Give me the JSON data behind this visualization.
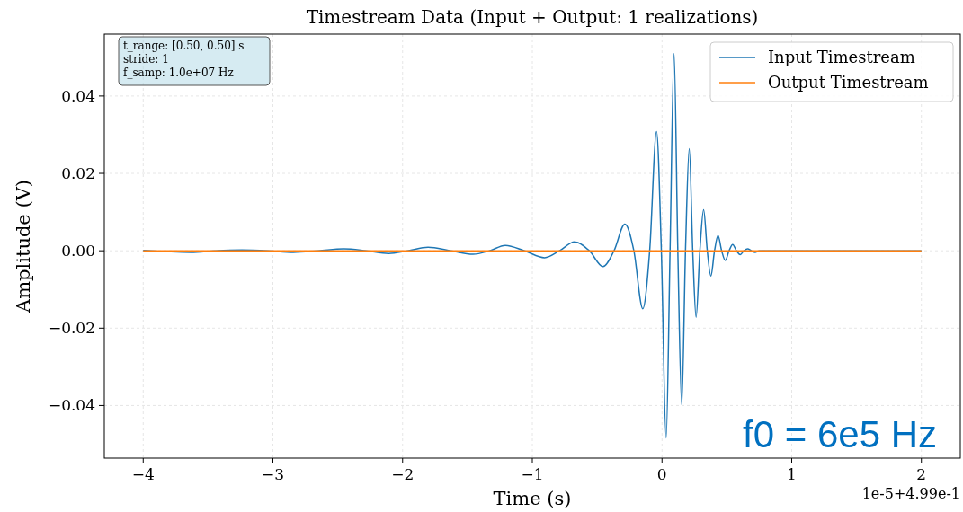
{
  "chart_data": {
    "type": "line",
    "title": "Timestream Data (Input + Output: 1 realizations)",
    "xlabel": "Time (s)",
    "ylabel": "Amplitude (V)",
    "annotations": [
      "t_range: [0.50, 0.50] s\nstride: 1\nf_samp: 1.0e+07 Hz",
      "1e-5+4.99e-1",
      "f0 = 6e5 Hz"
    ],
    "xlim": [
      -4.3,
      2.3
    ],
    "ylim": [
      -0.0536,
      0.056
    ],
    "xticks": [
      {
        "value": -4,
        "label": "−4"
      },
      {
        "value": -3,
        "label": "−3"
      },
      {
        "value": -2,
        "label": "−2"
      },
      {
        "value": -1,
        "label": "−1"
      },
      0,
      1,
      2
    ],
    "yticks": [
      {
        "value": -0.04,
        "label": "−0.04"
      },
      {
        "value": -0.02,
        "label": "−0.02"
      },
      {
        "value": 0,
        "label": "0.00"
      },
      {
        "value": 0.02,
        "label": "0.02"
      },
      {
        "value": 0.04,
        "label": "0.04"
      }
    ],
    "grid": true,
    "legend": "top right",
    "marker": "none",
    "line_style": "solid",
    "series": [
      {
        "name": "Input Timestream",
        "color": "#1f77b4",
        "x": [
          -4,
          -3.633,
          -3.44,
          -3.238,
          -3.04,
          -2.843,
          -2.65,
          -2.455,
          -2.28,
          -2.108,
          -1.96,
          -1.804,
          -1.63,
          -1.457,
          -1.33,
          -1.208,
          -1.06,
          -0.905,
          -0.79,
          -0.674,
          -0.56,
          -0.455,
          -0.37,
          -0.286,
          -0.217,
          -0.148,
          -0.095,
          -0.042,
          -0.005,
          0.032,
          0.062,
          0.093,
          0.122,
          0.152,
          0.181,
          0.21,
          0.237,
          0.263,
          0.292,
          0.321,
          0.349,
          0.377,
          0.405,
          0.432,
          0.46,
          0.488,
          0.517,
          0.545,
          0.574,
          0.603,
          0.632,
          0.66,
          0.689,
          0.718,
          0.75,
          2
        ],
        "values": [
          0.0001,
          -0.0004,
          0,
          0.0002,
          0,
          -0.0004,
          0,
          0.0005,
          0,
          -0.0007,
          0,
          0.0009,
          0,
          -0.0009,
          0,
          0.0014,
          0,
          -0.0018,
          0,
          0.0023,
          0,
          -0.0041,
          0,
          0.0069,
          0,
          -0.015,
          0,
          0.0308,
          0,
          -0.0484,
          0,
          0.051,
          0,
          -0.0399,
          0,
          0.0264,
          0,
          -0.0172,
          0,
          0.0106,
          0,
          -0.0065,
          0,
          0.0039,
          0,
          -0.0025,
          0,
          0.0016,
          0,
          -0.001,
          0,
          0.0005,
          0,
          -0.0004,
          0,
          0
        ]
      },
      {
        "name": "Output Timestream",
        "color": "#ff7f0e",
        "x": [
          -4,
          2
        ],
        "values": [
          0,
          0
        ]
      }
    ]
  }
}
